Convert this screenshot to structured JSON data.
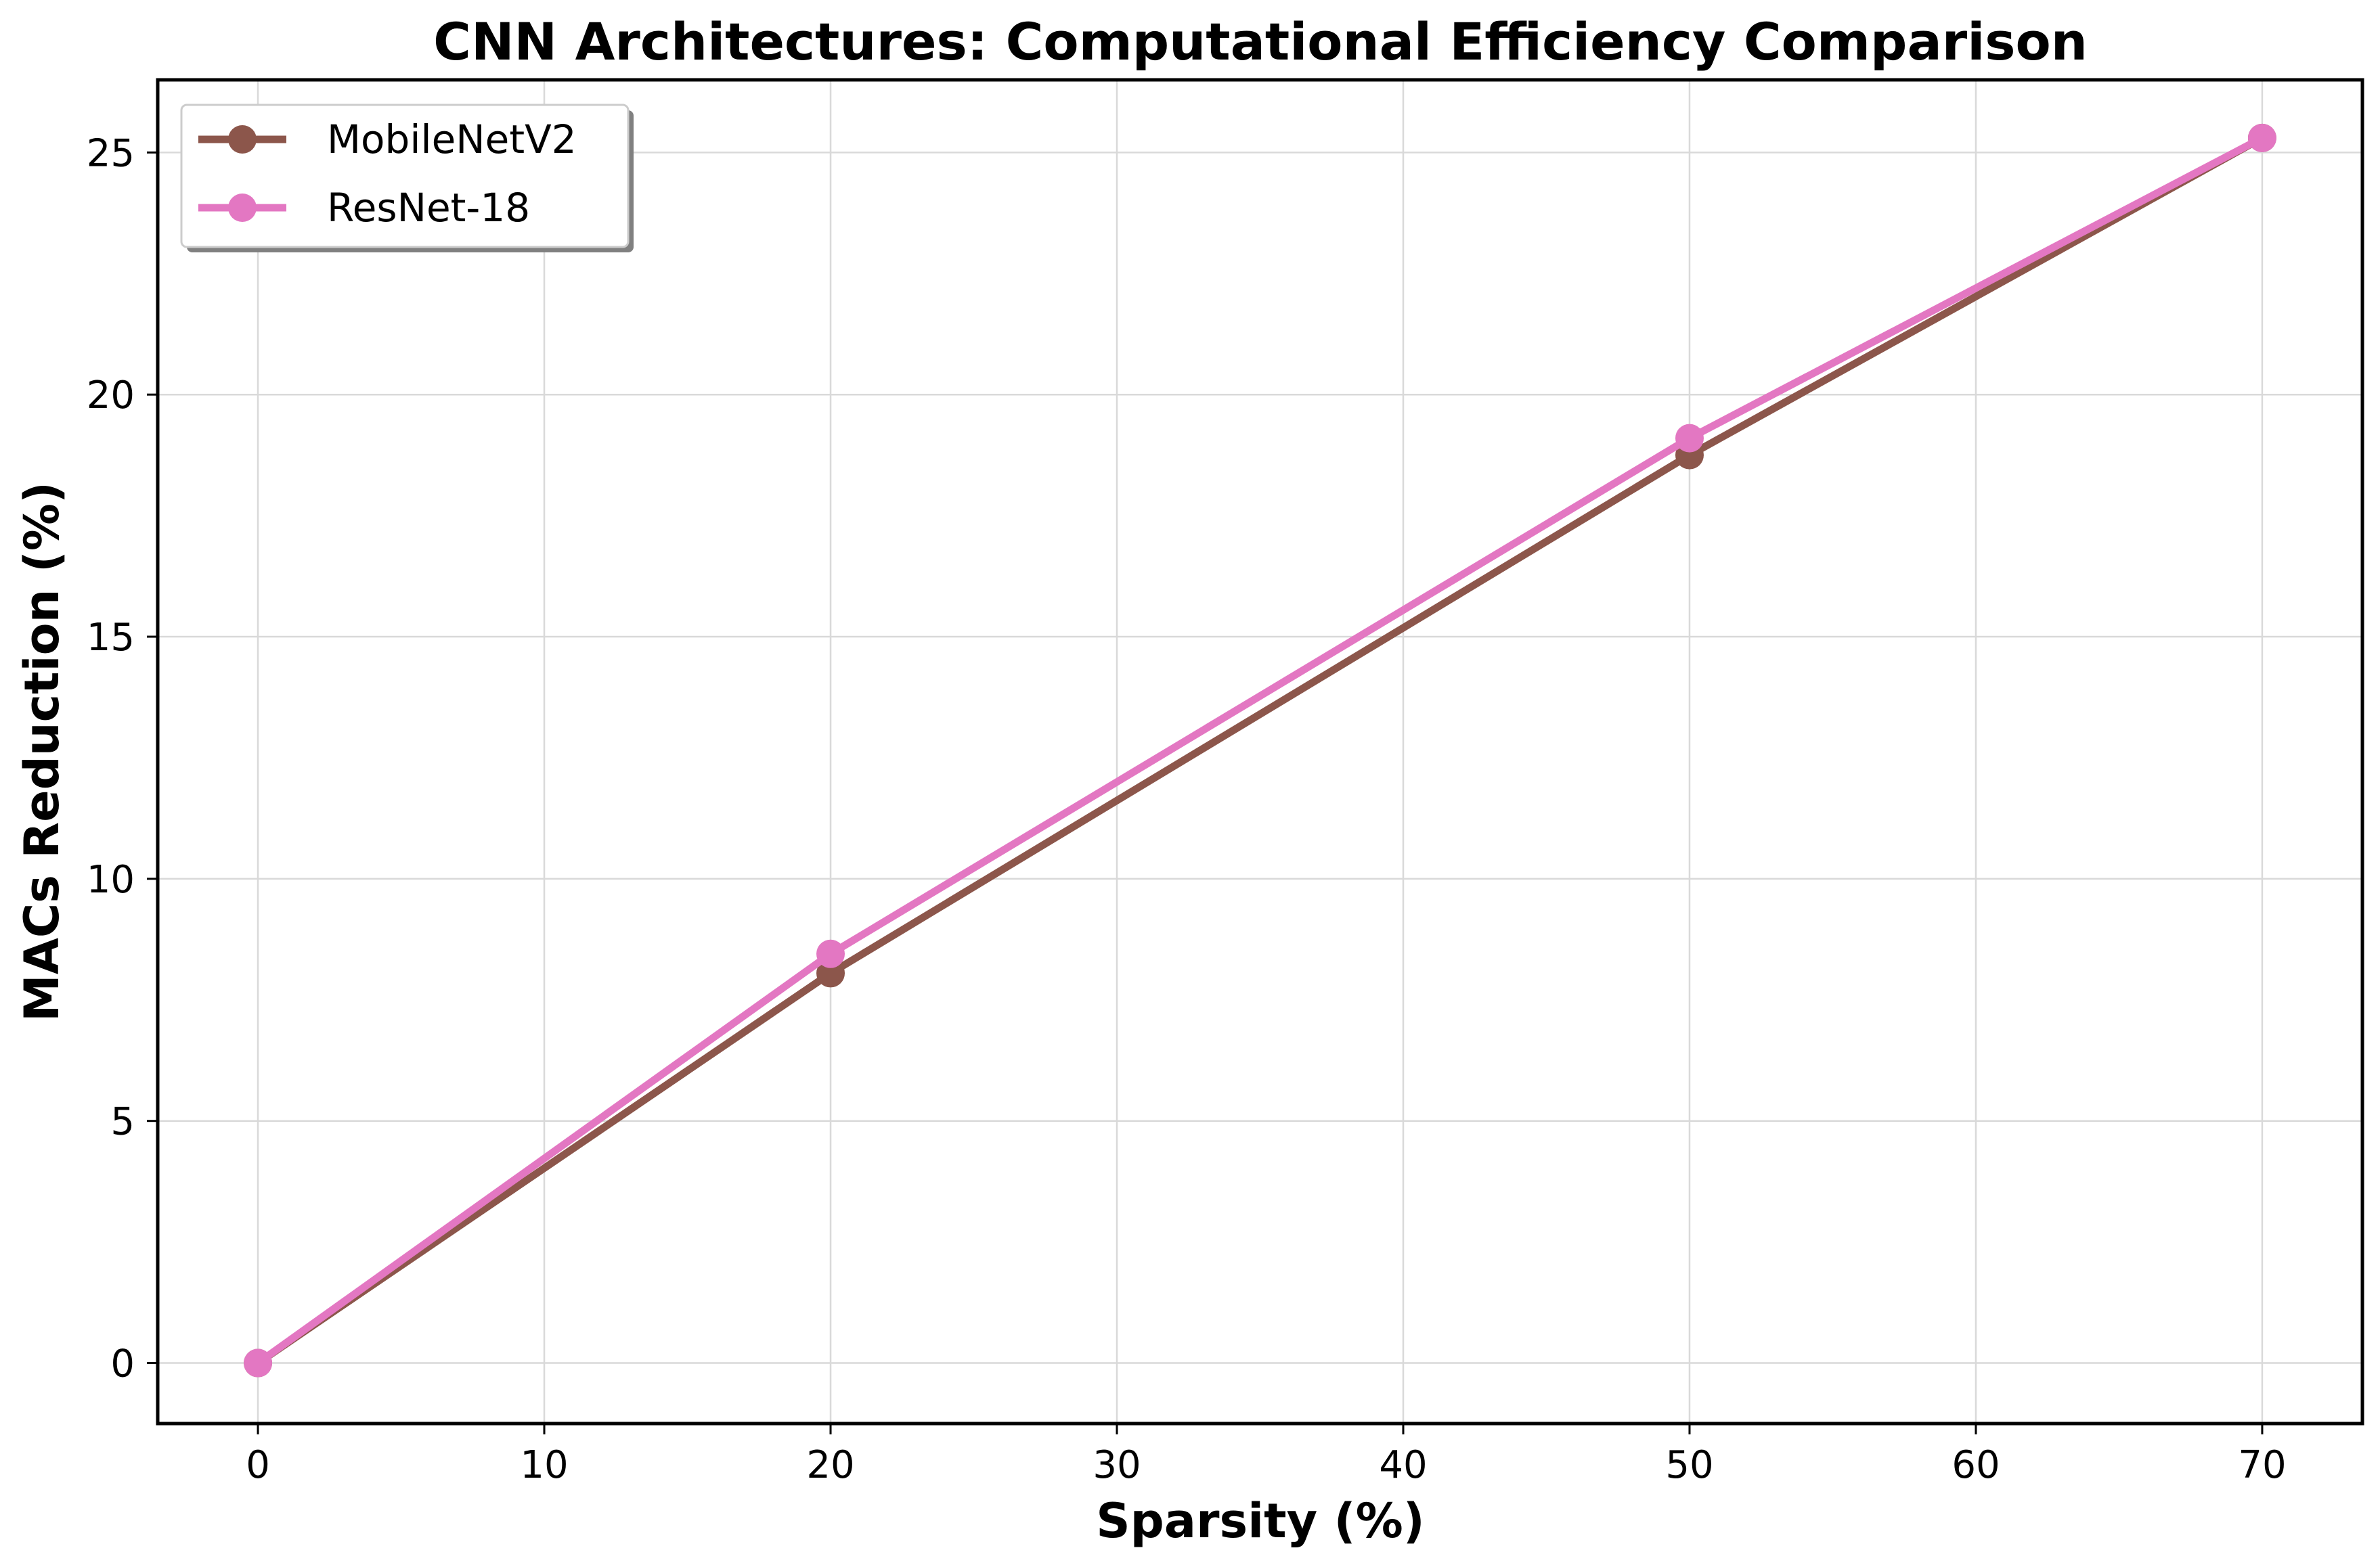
{
  "chart_data": {
    "type": "line",
    "title": "CNN Architectures: Computational Efficiency Comparison",
    "xlabel": "Sparsity (%)",
    "ylabel": "MACs Reduction (%)",
    "xlim": [
      -3.5,
      73.5
    ],
    "ylim": [
      -1.25,
      26.5
    ],
    "xticks": [
      0,
      10,
      20,
      30,
      40,
      50,
      60,
      70
    ],
    "yticks": [
      0,
      5,
      10,
      15,
      20,
      25
    ],
    "grid": true,
    "legend_position": "top-left",
    "x": [
      0,
      20,
      50,
      70
    ],
    "series": [
      {
        "name": "MobileNetV2",
        "color": "#8c564b",
        "values": [
          0,
          8.05,
          18.75,
          25.3
        ]
      },
      {
        "name": "ResNet-18",
        "color": "#e377c2",
        "values": [
          0,
          8.45,
          19.1,
          25.3
        ]
      }
    ]
  }
}
